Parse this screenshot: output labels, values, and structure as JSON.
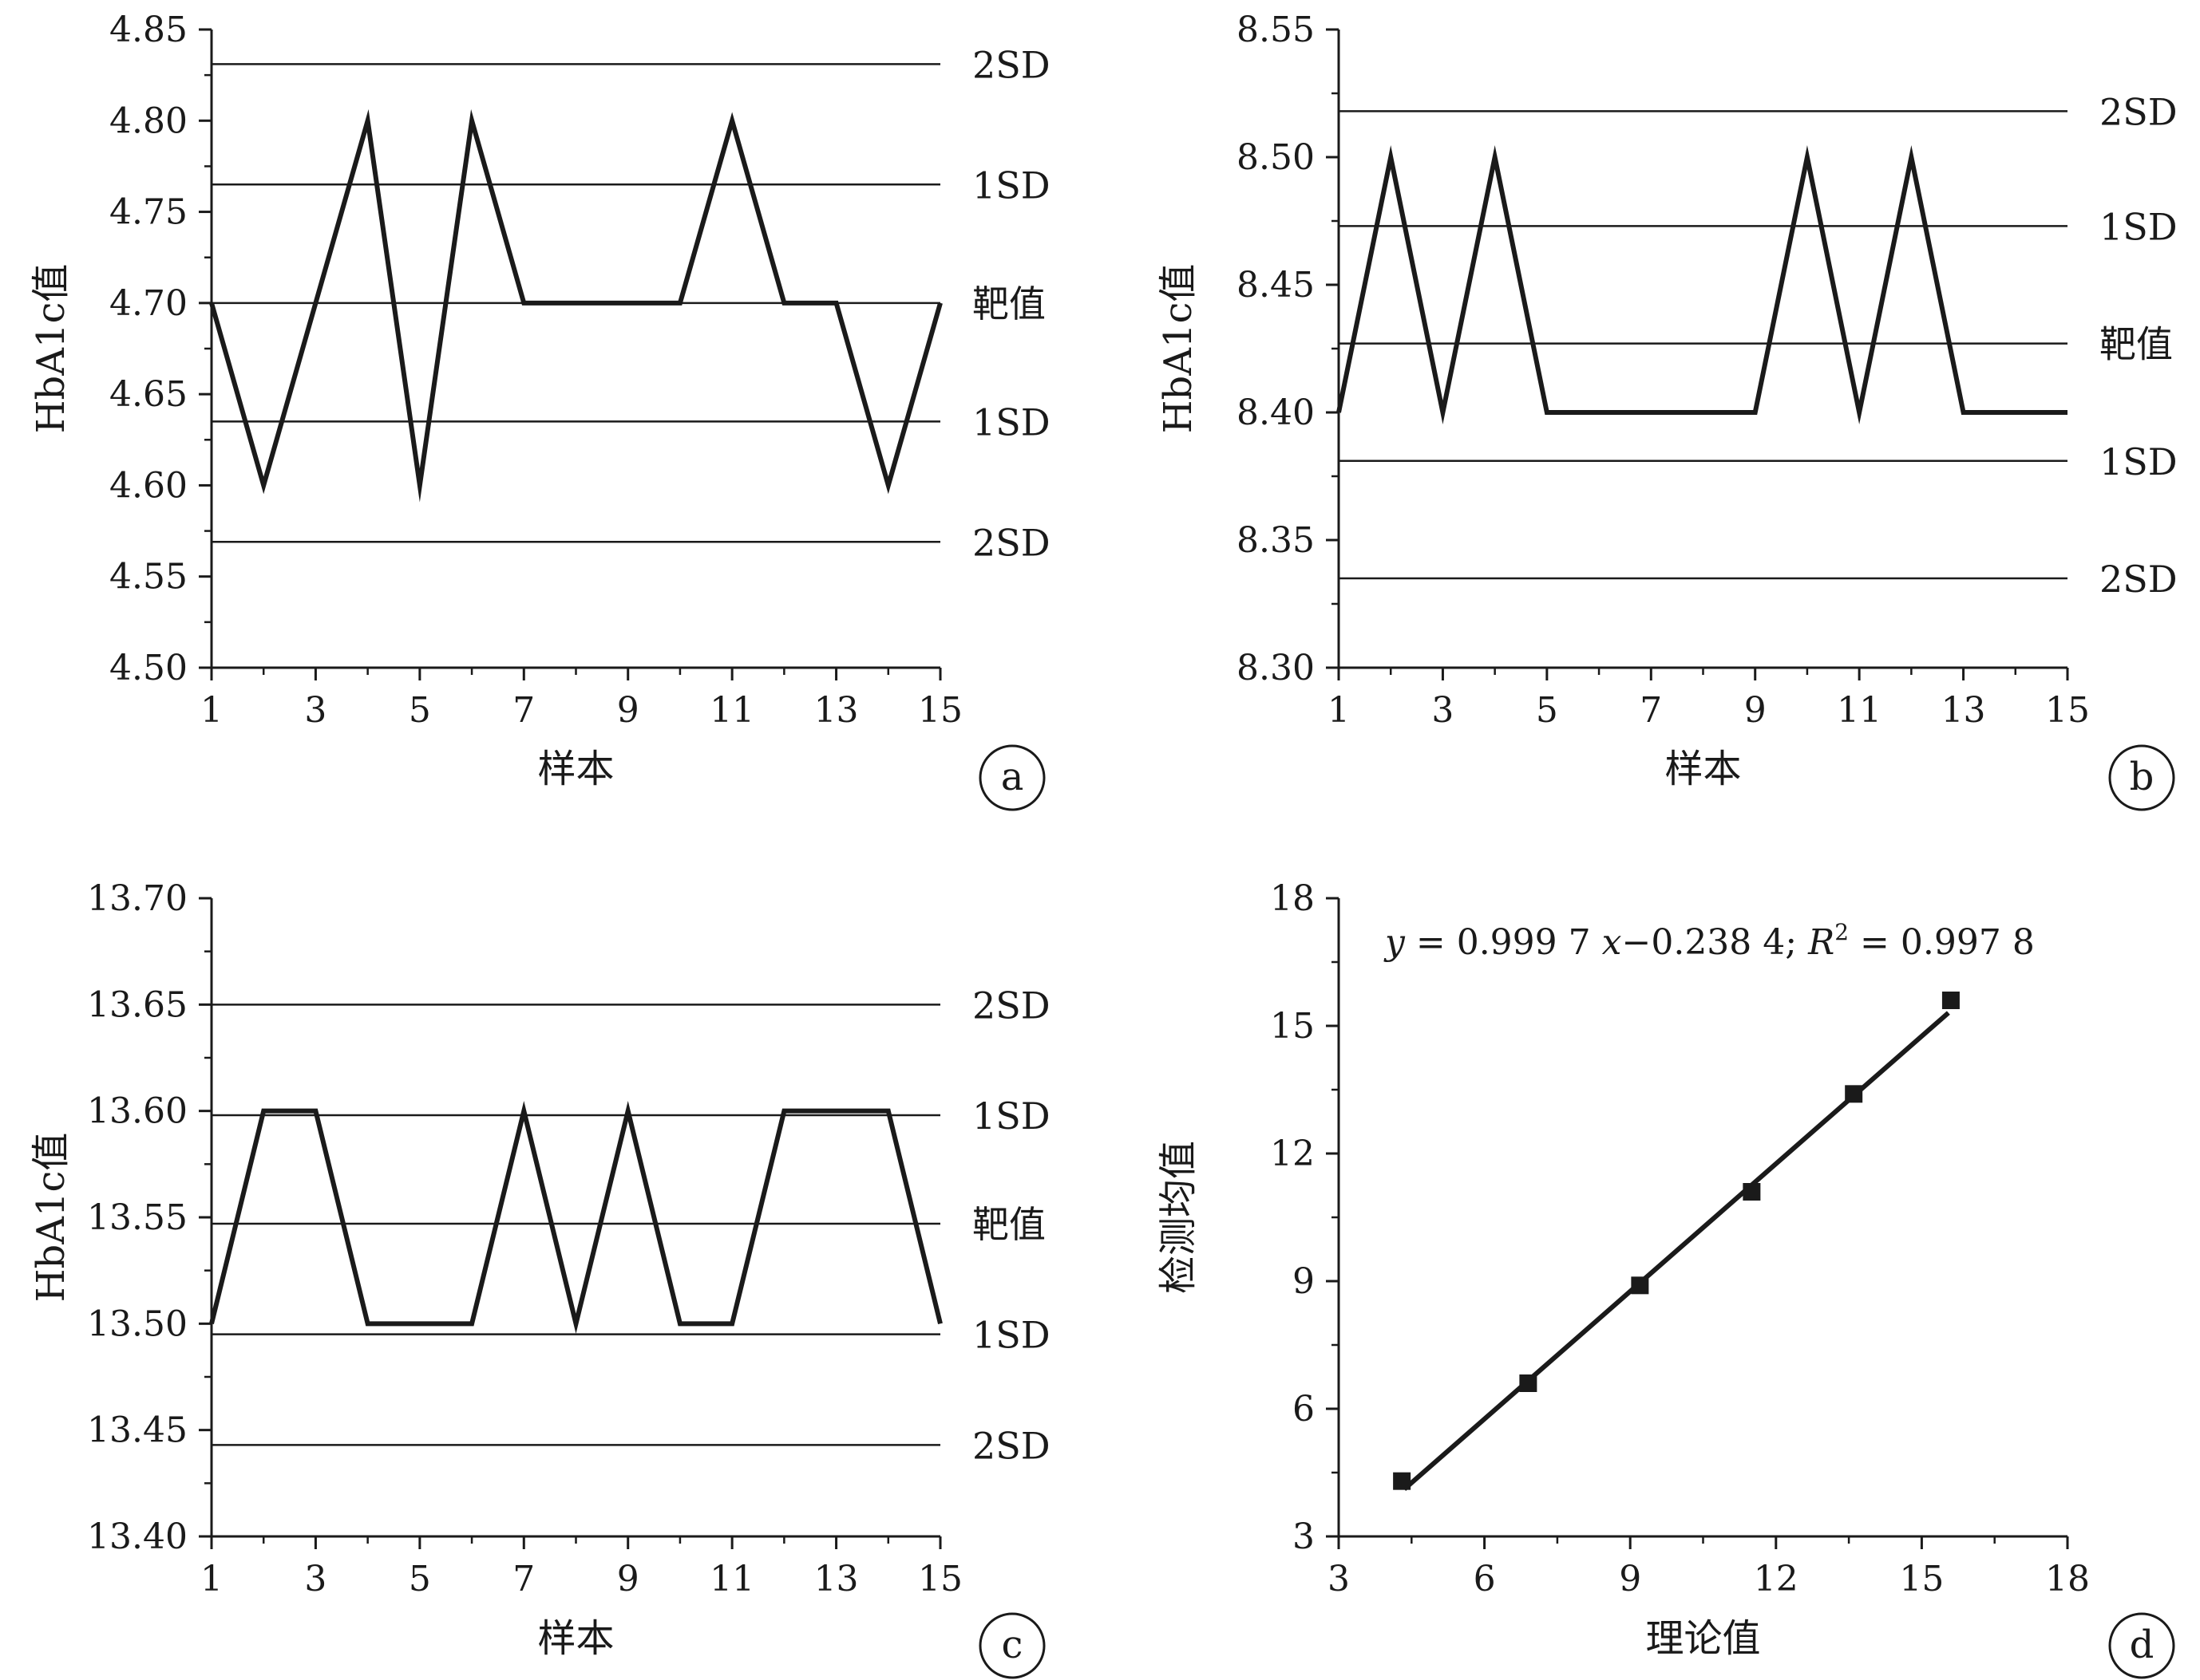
{
  "chart_data": [
    {
      "panel": "a",
      "type": "line",
      "xlabel": "样本",
      "ylabel": "HbA1c值",
      "xlim": [
        1,
        15
      ],
      "ylim": [
        4.5,
        4.85
      ],
      "xticks": [
        1,
        3,
        5,
        7,
        9,
        11,
        13,
        15
      ],
      "yticks": [
        4.5,
        4.55,
        4.6,
        4.65,
        4.7,
        4.75,
        4.8,
        4.85
      ],
      "x": [
        1,
        2,
        3,
        4,
        5,
        6,
        7,
        8,
        9,
        10,
        11,
        12,
        13,
        14,
        15
      ],
      "values": [
        4.7,
        4.6,
        4.7,
        4.8,
        4.6,
        4.8,
        4.7,
        4.7,
        4.7,
        4.7,
        4.8,
        4.7,
        4.7,
        4.6,
        4.7
      ],
      "reference_lines": [
        {
          "label": "2SD",
          "value": 4.831
        },
        {
          "label": "1SD",
          "value": 4.765
        },
        {
          "label": "靶值",
          "value": 4.7
        },
        {
          "label": "1SD",
          "value": 4.635
        },
        {
          "label": "2SD",
          "value": 4.569
        }
      ]
    },
    {
      "panel": "b",
      "type": "line",
      "xlabel": "样本",
      "ylabel": "HbA1c值",
      "xlim": [
        1,
        15
      ],
      "ylim": [
        8.3,
        8.55
      ],
      "xticks": [
        1,
        3,
        5,
        7,
        9,
        11,
        13,
        15
      ],
      "yticks": [
        8.3,
        8.35,
        8.4,
        8.45,
        8.5,
        8.55
      ],
      "x": [
        1,
        2,
        3,
        4,
        5,
        6,
        7,
        8,
        9,
        10,
        11,
        12,
        13,
        14,
        15
      ],
      "values": [
        8.4,
        8.5,
        8.4,
        8.5,
        8.4,
        8.4,
        8.4,
        8.4,
        8.4,
        8.5,
        8.4,
        8.5,
        8.4,
        8.4,
        8.4
      ],
      "reference_lines": [
        {
          "label": "2SD",
          "value": 8.518
        },
        {
          "label": "1SD",
          "value": 8.473
        },
        {
          "label": "靶值",
          "value": 8.427
        },
        {
          "label": "1SD",
          "value": 8.381
        },
        {
          "label": "2SD",
          "value": 8.335
        }
      ]
    },
    {
      "panel": "c",
      "type": "line",
      "xlabel": "样本",
      "ylabel": "HbA1c值",
      "xlim": [
        1,
        15
      ],
      "ylim": [
        13.4,
        13.7
      ],
      "xticks": [
        1,
        3,
        5,
        7,
        9,
        11,
        13,
        15
      ],
      "yticks": [
        13.4,
        13.45,
        13.5,
        13.55,
        13.6,
        13.65,
        13.7
      ],
      "x": [
        1,
        2,
        3,
        4,
        5,
        6,
        7,
        8,
        9,
        10,
        11,
        12,
        13,
        14,
        15
      ],
      "values": [
        13.5,
        13.6,
        13.6,
        13.5,
        13.5,
        13.5,
        13.6,
        13.5,
        13.6,
        13.5,
        13.5,
        13.6,
        13.6,
        13.6,
        13.5
      ],
      "reference_lines": [
        {
          "label": "2SD",
          "value": 13.65
        },
        {
          "label": "1SD",
          "value": 13.598
        },
        {
          "label": "靶值",
          "value": 13.547
        },
        {
          "label": "1SD",
          "value": 13.495
        },
        {
          "label": "2SD",
          "value": 13.443
        }
      ]
    },
    {
      "panel": "d",
      "type": "scatter",
      "xlabel": "理论值",
      "ylabel": "检测均值",
      "xlim": [
        3,
        18
      ],
      "ylim": [
        3,
        18
      ],
      "xticks": [
        3,
        6,
        9,
        12,
        15,
        18
      ],
      "yticks": [
        3,
        6,
        9,
        12,
        15,
        18
      ],
      "x": [
        4.3,
        6.9,
        9.2,
        11.5,
        13.6,
        15.6
      ],
      "values": [
        4.3,
        6.6,
        8.9,
        11.1,
        13.4,
        15.6
      ],
      "fit": {
        "slope": 0.9997,
        "intercept": -0.2384,
        "x_range": [
          4.35,
          15.55
        ]
      },
      "equation": {
        "y": "y",
        "eq1": " = 0.999 7 ",
        "x": "x",
        "eq2": "−0.238 4; ",
        "R": "R",
        "sup": "2",
        "eq3": " = 0.997 8"
      }
    }
  ]
}
